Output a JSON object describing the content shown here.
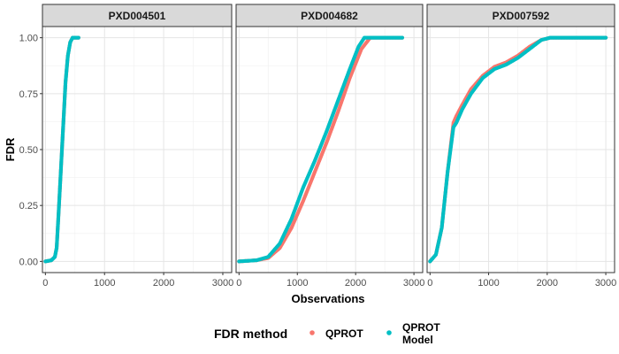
{
  "chart_data": {
    "type": "scatter",
    "ylabel": "FDR",
    "xlabel": "Observations",
    "xlim": [
      -50,
      3150
    ],
    "ylim": [
      -0.05,
      1.05
    ],
    "x_ticks": [
      0,
      1000,
      2000,
      3000
    ],
    "y_ticks": [
      0.0,
      0.25,
      0.5,
      0.75,
      1.0
    ],
    "x_tick_labels": [
      "0",
      "1000",
      "2000",
      "3000"
    ],
    "y_tick_labels": [
      "0.00",
      "0.25",
      "0.50",
      "0.75",
      "1.00"
    ],
    "grid": true,
    "legend_position": "bottom",
    "legend": {
      "title": "FDR method",
      "entries": [
        {
          "label_lines": [
            "QPROT"
          ],
          "color": "#F8766D"
        },
        {
          "label_lines": [
            "QPROT",
            "Model"
          ],
          "color": "#00BFC4"
        }
      ]
    },
    "panels": [
      {
        "strip": "PXD004501",
        "series": [
          {
            "name": "QPROT",
            "color": "#F8766D",
            "points": [
              [
                0,
                0
              ],
              [
                100,
                0.005
              ],
              [
                160,
                0.02
              ],
              [
                190,
                0.06
              ],
              [
                220,
                0.2
              ],
              [
                260,
                0.4
              ],
              [
                300,
                0.6
              ],
              [
                340,
                0.8
              ],
              [
                380,
                0.92
              ],
              [
                420,
                0.98
              ],
              [
                460,
                1.0
              ],
              [
                560,
                1.0
              ]
            ]
          },
          {
            "name": "QPROT Model",
            "color": "#00BFC4",
            "points": [
              [
                0,
                0
              ],
              [
                100,
                0.005
              ],
              [
                160,
                0.02
              ],
              [
                190,
                0.06
              ],
              [
                220,
                0.2
              ],
              [
                260,
                0.4
              ],
              [
                300,
                0.6
              ],
              [
                340,
                0.8
              ],
              [
                380,
                0.92
              ],
              [
                420,
                0.98
              ],
              [
                460,
                1.0
              ],
              [
                560,
                1.0
              ]
            ]
          }
        ]
      },
      {
        "strip": "PXD004682",
        "series": [
          {
            "name": "QPROT",
            "color": "#F8766D",
            "points": [
              [
                0,
                0
              ],
              [
                300,
                0.005
              ],
              [
                500,
                0.015
              ],
              [
                700,
                0.06
              ],
              [
                900,
                0.15
              ],
              [
                1100,
                0.27
              ],
              [
                1300,
                0.4
              ],
              [
                1500,
                0.53
              ],
              [
                1700,
                0.67
              ],
              [
                1900,
                0.82
              ],
              [
                2100,
                0.95
              ],
              [
                2250,
                1.0
              ],
              [
                2800,
                1.0
              ]
            ]
          },
          {
            "name": "QPROT Model",
            "color": "#00BFC4",
            "points": [
              [
                0,
                0
              ],
              [
                300,
                0.005
              ],
              [
                500,
                0.02
              ],
              [
                700,
                0.08
              ],
              [
                900,
                0.19
              ],
              [
                1100,
                0.33
              ],
              [
                1300,
                0.45
              ],
              [
                1500,
                0.58
              ],
              [
                1700,
                0.72
              ],
              [
                1900,
                0.86
              ],
              [
                2050,
                0.96
              ],
              [
                2150,
                1.0
              ],
              [
                2800,
                1.0
              ]
            ]
          }
        ]
      },
      {
        "strip": "PXD007592",
        "series": [
          {
            "name": "QPROT",
            "color": "#F8766D",
            "points": [
              [
                0,
                0
              ],
              [
                100,
                0.03
              ],
              [
                200,
                0.15
              ],
              [
                300,
                0.4
              ],
              [
                400,
                0.62
              ],
              [
                450,
                0.65
              ],
              [
                550,
                0.7
              ],
              [
                700,
                0.77
              ],
              [
                900,
                0.83
              ],
              [
                1100,
                0.87
              ],
              [
                1300,
                0.89
              ],
              [
                1500,
                0.92
              ],
              [
                1700,
                0.96
              ],
              [
                1900,
                0.99
              ],
              [
                2050,
                1.0
              ],
              [
                3000,
                1.0
              ]
            ]
          },
          {
            "name": "QPROT Model",
            "color": "#00BFC4",
            "points": [
              [
                0,
                0
              ],
              [
                100,
                0.03
              ],
              [
                200,
                0.15
              ],
              [
                300,
                0.4
              ],
              [
                400,
                0.6
              ],
              [
                450,
                0.62
              ],
              [
                550,
                0.68
              ],
              [
                700,
                0.75
              ],
              [
                900,
                0.82
              ],
              [
                1100,
                0.86
              ],
              [
                1300,
                0.88
              ],
              [
                1500,
                0.91
              ],
              [
                1700,
                0.95
              ],
              [
                1900,
                0.99
              ],
              [
                2050,
                1.0
              ],
              [
                3000,
                1.0
              ]
            ]
          }
        ]
      }
    ]
  }
}
